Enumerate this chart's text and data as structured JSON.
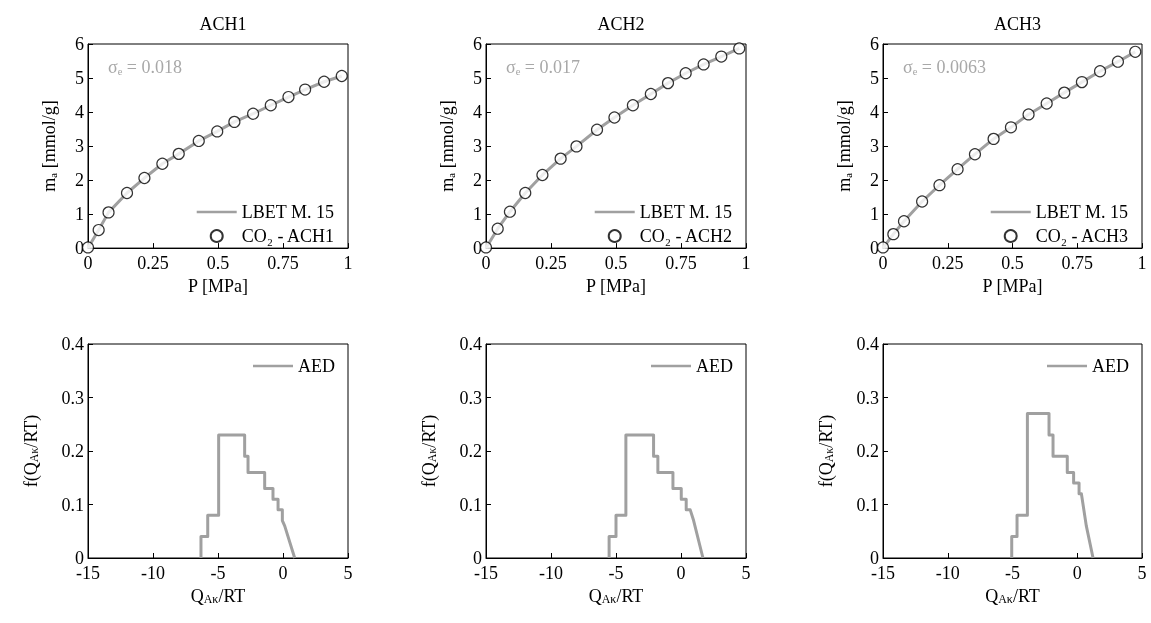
{
  "chart_data": [
    {
      "type": "line",
      "title": "ACH1",
      "xlabel": "P [MPa]",
      "ylabel": "mₐ [mmol/g]",
      "annotations": [
        "σₑ = 0.018"
      ],
      "xlim": [
        0,
        1
      ],
      "xticks": [
        0,
        0.25,
        0.5,
        0.75,
        1
      ],
      "ylim": [
        0,
        6
      ],
      "yticks": [
        0,
        1,
        2,
        3,
        4,
        5,
        6
      ],
      "grid": false,
      "legend": "bottom right",
      "series": [
        {
          "name": "LBET M. 15",
          "type": "line",
          "marker": "none",
          "color": "#a0a0a0",
          "x": [
            0,
            0.041,
            0.079,
            0.15,
            0.217,
            0.286,
            0.349,
            0.426,
            0.497,
            0.563,
            0.635,
            0.703,
            0.771,
            0.835,
            0.908,
            0.976
          ],
          "values": [
            0,
            0.53,
            1.05,
            1.62,
            2.06,
            2.48,
            2.77,
            3.15,
            3.43,
            3.71,
            3.95,
            4.2,
            4.44,
            4.66,
            4.89,
            5.06
          ]
        },
        {
          "name": "CO₂ - ACH1",
          "type": "scatter",
          "marker": "circle",
          "color": "#000000",
          "x": [
            0,
            0.041,
            0.079,
            0.15,
            0.217,
            0.286,
            0.349,
            0.426,
            0.497,
            0.563,
            0.635,
            0.703,
            0.771,
            0.835,
            0.908,
            0.976
          ],
          "values": [
            0.02,
            0.53,
            1.05,
            1.62,
            2.06,
            2.48,
            2.77,
            3.15,
            3.43,
            3.71,
            3.95,
            4.2,
            4.44,
            4.66,
            4.89,
            5.06
          ]
        }
      ]
    },
    {
      "type": "line",
      "title": "ACH2",
      "xlabel": "P [MPa]",
      "ylabel": "mₐ [mmol/g]",
      "annotations": [
        "σₑ = 0.017"
      ],
      "xlim": [
        0,
        1
      ],
      "xticks": [
        0,
        0.25,
        0.5,
        0.75,
        1
      ],
      "ylim": [
        0,
        6
      ],
      "yticks": [
        0,
        1,
        2,
        3,
        4,
        5,
        6
      ],
      "grid": false,
      "legend": "bottom right",
      "series": [
        {
          "name": "LBET M. 15",
          "type": "line",
          "marker": "none",
          "color": "#a0a0a0",
          "x": [
            0,
            0.045,
            0.092,
            0.151,
            0.217,
            0.287,
            0.348,
            0.427,
            0.494,
            0.565,
            0.634,
            0.7,
            0.768,
            0.837,
            0.905,
            0.974
          ],
          "values": [
            0,
            0.57,
            1.07,
            1.62,
            2.15,
            2.63,
            2.99,
            3.48,
            3.84,
            4.2,
            4.53,
            4.85,
            5.14,
            5.4,
            5.63,
            5.87
          ]
        },
        {
          "name": "CO₂ - ACH2",
          "type": "scatter",
          "marker": "circle",
          "color": "#000000",
          "x": [
            0,
            0.045,
            0.092,
            0.151,
            0.217,
            0.287,
            0.348,
            0.427,
            0.494,
            0.565,
            0.634,
            0.7,
            0.768,
            0.837,
            0.905,
            0.974
          ],
          "values": [
            0.02,
            0.57,
            1.07,
            1.62,
            2.15,
            2.63,
            2.99,
            3.48,
            3.84,
            4.2,
            4.53,
            4.85,
            5.14,
            5.4,
            5.63,
            5.87
          ]
        }
      ]
    },
    {
      "type": "line",
      "title": "ACH3",
      "xlabel": "P [MPa]",
      "ylabel": "mₐ [mmol/g]",
      "annotations": [
        "σₑ = 0.0063"
      ],
      "xlim": [
        0,
        1
      ],
      "xticks": [
        0,
        0.25,
        0.5,
        0.75,
        1
      ],
      "ylim": [
        0,
        6
      ],
      "yticks": [
        0,
        1,
        2,
        3,
        4,
        5,
        6
      ],
      "grid": false,
      "legend": "bottom right",
      "series": [
        {
          "name": "LBET M. 15",
          "type": "line",
          "marker": "none",
          "color": "#a0a0a0",
          "x": [
            0,
            0.04,
            0.081,
            0.151,
            0.218,
            0.288,
            0.355,
            0.427,
            0.494,
            0.562,
            0.632,
            0.7,
            0.768,
            0.838,
            0.907,
            0.974
          ],
          "values": [
            0,
            0.41,
            0.79,
            1.37,
            1.85,
            2.32,
            2.76,
            3.21,
            3.55,
            3.93,
            4.25,
            4.57,
            4.88,
            5.2,
            5.48,
            5.77
          ]
        },
        {
          "name": "CO₂ - ACH3",
          "type": "scatter",
          "marker": "circle",
          "color": "#000000",
          "x": [
            0,
            0.04,
            0.081,
            0.151,
            0.218,
            0.288,
            0.355,
            0.427,
            0.494,
            0.562,
            0.632,
            0.7,
            0.768,
            0.838,
            0.907,
            0.974
          ],
          "values": [
            0.02,
            0.41,
            0.79,
            1.37,
            1.85,
            2.32,
            2.76,
            3.21,
            3.55,
            3.93,
            4.25,
            4.57,
            4.88,
            5.2,
            5.48,
            5.77
          ]
        }
      ]
    },
    {
      "type": "line",
      "xlabel": "Q$_{Aκ}$/RT",
      "ylabel": "f(Q$_{Aκ}$/RT)",
      "xlim": [
        -15,
        5
      ],
      "xticks": [
        -15,
        -10,
        -5,
        0,
        5
      ],
      "ylim": [
        0,
        0.4
      ],
      "yticks": [
        0,
        0.1,
        0.2,
        0.3,
        0.4
      ],
      "grid": false,
      "legend": "top right",
      "series": [
        {
          "name": "AED",
          "type": "line",
          "marker": "none",
          "color": "#a0a0a0",
          "x": [
            -6.31,
            -6.31,
            -5.79,
            -5.79,
            -4.95,
            -4.95,
            -2.95,
            -2.95,
            -2.69,
            -2.69,
            -1.41,
            -1.41,
            -0.77,
            -0.77,
            -0.38,
            -0.38,
            -0.05,
            -0.05,
            0.13,
            0.9
          ],
          "values": [
            0,
            0.04,
            0.04,
            0.08,
            0.08,
            0.23,
            0.23,
            0.19,
            0.19,
            0.16,
            0.16,
            0.13,
            0.13,
            0.11,
            0.11,
            0.09,
            0.09,
            0.07,
            0.06,
            0
          ]
        }
      ]
    },
    {
      "type": "line",
      "xlabel": "Q$_{Aκ}$/RT",
      "ylabel": "f(Q$_{Aκ}$/RT)",
      "xlim": [
        -15,
        5
      ],
      "xticks": [
        -15,
        -10,
        -5,
        0,
        5
      ],
      "ylim": [
        0,
        0.4
      ],
      "yticks": [
        0,
        0.1,
        0.2,
        0.3,
        0.4
      ],
      "grid": false,
      "legend": "top right",
      "series": [
        {
          "name": "AED",
          "type": "line",
          "marker": "none",
          "color": "#a0a0a0",
          "x": [
            -5.53,
            -5.53,
            -5.0,
            -5.0,
            -4.24,
            -4.24,
            -2.11,
            -2.11,
            -1.78,
            -1.78,
            -0.62,
            -0.62,
            0.02,
            0.02,
            0.4,
            0.4,
            0.71,
            0.97,
            1.69
          ],
          "values": [
            0,
            0.04,
            0.04,
            0.08,
            0.08,
            0.23,
            0.23,
            0.19,
            0.19,
            0.16,
            0.16,
            0.13,
            0.13,
            0.11,
            0.11,
            0.09,
            0.09,
            0.07,
            0
          ]
        }
      ]
    },
    {
      "type": "line",
      "xlabel": "Q$_{Aκ}$/RT",
      "ylabel": "f(Q$_{Aκ}$/RT)",
      "xlim": [
        -15,
        5
      ],
      "xticks": [
        -15,
        -10,
        -5,
        0,
        5
      ],
      "ylim": [
        0,
        0.4
      ],
      "yticks": [
        0,
        0.1,
        0.2,
        0.3,
        0.4
      ],
      "grid": false,
      "legend": "top right",
      "series": [
        {
          "name": "AED",
          "type": "line",
          "marker": "none",
          "color": "#a0a0a0",
          "x": [
            -5.06,
            -5.06,
            -4.65,
            -4.65,
            -3.85,
            -3.85,
            -2.18,
            -2.18,
            -1.87,
            -1.87,
            -0.77,
            -0.77,
            -0.28,
            -0.28,
            0.14,
            0.14,
            0.32,
            0.7,
            1.22
          ],
          "values": [
            0,
            0.04,
            0.04,
            0.08,
            0.08,
            0.27,
            0.27,
            0.23,
            0.23,
            0.19,
            0.19,
            0.16,
            0.16,
            0.14,
            0.14,
            0.12,
            0.12,
            0.06,
            0
          ]
        }
      ]
    }
  ]
}
